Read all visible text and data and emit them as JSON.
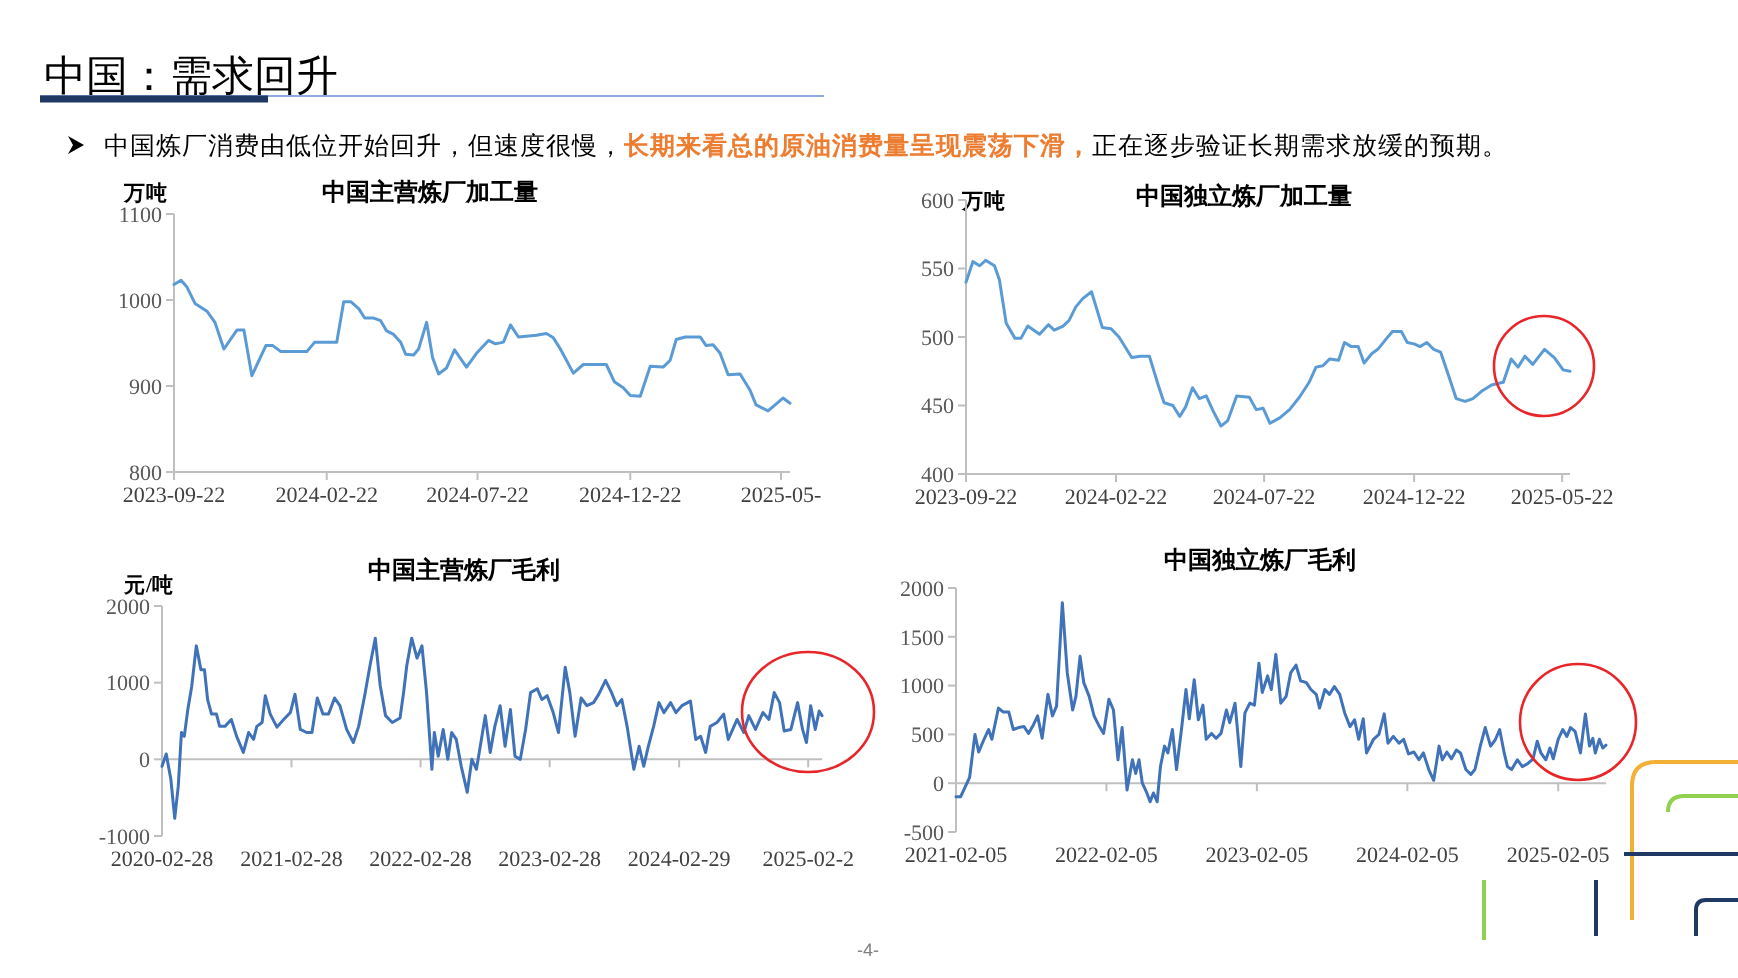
{
  "chart_data": [
    {
      "type": "other",
      "title": "中国：需求回升",
      "annotations": [
        "中国炼厂消费由低位开始回升，但速度很慢，",
        "长期来看总的原油消费量呈现震荡下滑，",
        "正在逐步验证长期需求放缓的预期。",
        "-4-"
      ]
    },
    {
      "type": "line",
      "title": "中国主营炼厂加工量",
      "ylabel": "万吨",
      "xlim": [
        "2023-09-22",
        "2025-05-31"
      ],
      "ylim": [
        800,
        1100
      ],
      "yticks": [
        800,
        900,
        1000,
        1100
      ],
      "xticks": [
        "2023-09-22",
        "2024-02-22",
        "2024-07-22",
        "2024-12-22",
        {
          "value": "2025-05-22",
          "label": "2025-05-"
        }
      ],
      "x": [
        "2023-09-22",
        "2023-09-29",
        "2023-10-05",
        "2023-10-13",
        "2023-10-25",
        "2023-11-02",
        "2023-11-11",
        "2023-11-24",
        "2023-12-01",
        "2023-12-09",
        "2023-12-23",
        "2023-12-30",
        "2024-01-07",
        "2024-02-02",
        "2024-02-10",
        "2024-03-03",
        "2024-03-10",
        "2024-03-17",
        "2024-03-25",
        "2024-03-31",
        "2024-04-09",
        "2024-04-16",
        "2024-04-22",
        "2024-04-29",
        "2024-05-06",
        "2024-05-11",
        "2024-05-19",
        "2024-05-24",
        "2024-06-01",
        "2024-06-07",
        "2024-06-13",
        "2024-06-21",
        "2024-06-29",
        "2024-07-11",
        "2024-07-21",
        "2024-08-02",
        "2024-08-09",
        "2024-08-17",
        "2024-08-24",
        "2024-09-01",
        "2024-09-19",
        "2024-09-29",
        "2024-10-06",
        "2024-10-13",
        "2024-10-26",
        "2024-11-05",
        "2024-11-28",
        "2024-12-06",
        "2024-12-15",
        "2024-12-22",
        "2025-01-01",
        "2025-01-11",
        "2025-01-24",
        "2025-01-31",
        "2025-02-06",
        "2025-02-15",
        "2025-03-02",
        "2025-03-08",
        "2025-03-15",
        "2025-03-22",
        "2025-03-30",
        "2025-04-11",
        "2025-04-21",
        "2025-04-27",
        "2025-05-09",
        "2025-05-14",
        "2025-05-24",
        "2025-05-31"
      ],
      "series": [
        {
          "color": "#5b9bd5",
          "values": [
            1018,
            1023,
            1015,
            996,
            987,
            974,
            943,
            965,
            965,
            912,
            947,
            947,
            940,
            940,
            951,
            951,
            998,
            998,
            990,
            979,
            979,
            976,
            964,
            960,
            951,
            937,
            936,
            943,
            974,
            933,
            914,
            921,
            942,
            922,
            938,
            953,
            949,
            951,
            971,
            957,
            959,
            961,
            956,
            943,
            915,
            925,
            925,
            905,
            898,
            889,
            888,
            923,
            922,
            930,
            954,
            957,
            957,
            947,
            948,
            938,
            913,
            914,
            895,
            878,
            871,
            876,
            886,
            880
          ]
        }
      ]
    },
    {
      "type": "line",
      "title": "中国独立炼厂加工量",
      "ylabel": "万吨",
      "xlim": [
        "2023-09-22",
        "2025-05-30"
      ],
      "ylim": [
        400,
        600
      ],
      "yticks": [
        400,
        450,
        500,
        550,
        600
      ],
      "xticks": [
        "2023-09-22",
        "2024-02-22",
        "2024-07-22",
        "2024-12-22",
        "2025-05-22"
      ],
      "x": [
        "2023-09-22",
        "2023-09-29",
        "2023-10-06",
        "2023-10-12",
        "2023-10-21",
        "2023-10-26",
        "2023-11-02",
        "2023-11-11",
        "2023-11-17",
        "2023-11-24",
        "2023-12-06",
        "2023-12-15",
        "2023-12-21",
        "2023-12-30",
        "2024-01-05",
        "2024-01-12",
        "2024-01-19",
        "2024-01-28",
        "2024-02-08",
        "2024-02-17",
        "2024-02-25",
        "2024-03-09",
        "2024-03-18",
        "2024-03-27",
        "2024-04-05",
        "2024-04-11",
        "2024-04-20",
        "2024-04-27",
        "2024-05-03",
        "2024-05-10",
        "2024-05-17",
        "2024-05-24",
        "2024-05-31",
        "2024-06-08",
        "2024-06-15",
        "2024-06-24",
        "2024-07-07",
        "2024-07-14",
        "2024-07-21",
        "2024-07-28",
        "2024-08-07",
        "2024-08-17",
        "2024-08-27",
        "2024-09-06",
        "2024-09-13",
        "2024-09-20",
        "2024-09-27",
        "2024-10-06",
        "2024-10-12",
        "2024-10-19",
        "2024-10-26",
        "2024-11-01",
        "2024-11-09",
        "2024-11-15",
        "2024-11-24",
        "2024-11-30",
        "2024-12-09",
        "2024-12-15",
        "2024-12-22",
        "2024-12-28",
        "2025-01-04",
        "2025-01-11",
        "2025-01-18",
        "2025-01-27",
        "2025-02-03",
        "2025-02-12",
        "2025-02-20",
        "2025-03-02",
        "2025-03-11",
        "2025-03-23",
        "2025-03-31",
        "2025-04-07",
        "2025-04-14",
        "2025-04-22",
        "2025-05-04",
        "2025-05-14",
        "2025-05-23",
        "2025-05-30"
      ],
      "series": [
        {
          "color": "#5b9bd5",
          "values": [
            540,
            555,
            552,
            556,
            552,
            542,
            510,
            499,
            499,
            508,
            502,
            509,
            505,
            508,
            512,
            522,
            528,
            533,
            507,
            506,
            500,
            485,
            486,
            486,
            465,
            452,
            450,
            442,
            449,
            463,
            455,
            457,
            446,
            435,
            439,
            457,
            456,
            447,
            448,
            437,
            441,
            447,
            456,
            467,
            478,
            479,
            484,
            483,
            496,
            493,
            493,
            481,
            488,
            491,
            499,
            504,
            504,
            496,
            495,
            493,
            496,
            491,
            489,
            470,
            455,
            453,
            455,
            461,
            465,
            467,
            484,
            478,
            486,
            480,
            491,
            485,
            476,
            475
          ]
        }
      ]
    },
    {
      "type": "line",
      "title": "中国主营炼厂毛利",
      "ylabel": "元/吨",
      "xlim": [
        "2020-02-28",
        "2025-04-08"
      ],
      "ylim": [
        -1000,
        2000
      ],
      "yticks": [
        -1000,
        0,
        1000,
        2000
      ],
      "xticks": [
        "2020-02-28",
        "2021-02-28",
        "2022-02-28",
        "2023-02-28",
        "2024-02-29",
        {
          "value": "2025-02-28",
          "label": "2025-02-2"
        }
      ],
      "x": [
        "2020-02-28",
        "2020-03-11",
        "2020-03-24",
        "2020-04-04",
        "2020-04-14",
        "2020-04-23",
        "2020-05-01",
        "2020-05-11",
        "2020-05-22",
        "2020-06-04",
        "2020-06-17",
        "2020-06-27",
        "2020-07-06",
        "2020-07-17",
        "2020-07-31",
        "2020-08-09",
        "2020-08-24",
        "2020-09-11",
        "2020-09-26",
        "2020-10-15",
        "2020-10-30",
        "2020-11-13",
        "2020-11-22",
        "2020-12-07",
        "2020-12-16",
        "2020-12-30",
        "2021-01-18",
        "2021-02-06",
        "2021-02-25",
        "2021-03-10",
        "2021-03-25",
        "2021-04-12",
        "2021-04-27",
        "2021-05-12",
        "2021-05-28",
        "2021-06-13",
        "2021-06-30",
        "2021-07-15",
        "2021-08-03",
        "2021-08-22",
        "2021-09-06",
        "2021-09-23",
        "2021-10-08",
        "2021-10-23",
        "2021-11-06",
        "2021-11-21",
        "2021-12-10",
        "2022-01-01",
        "2022-01-11",
        "2022-01-20",
        "2022-02-03",
        "2022-02-18",
        "2022-03-04",
        "2022-03-17",
        "2022-04-01",
        "2022-04-08",
        "2022-04-19",
        "2022-05-03",
        "2022-05-16",
        "2022-05-27",
        "2022-06-09",
        "2022-06-23",
        "2022-07-10",
        "2022-07-23",
        "2022-08-05",
        "2022-08-19",
        "2022-08-30",
        "2022-09-13",
        "2022-09-26",
        "2022-10-11",
        "2022-10-25",
        "2022-11-09",
        "2022-11-22",
        "2022-12-07",
        "2022-12-22",
        "2023-01-05",
        "2023-01-24",
        "2023-02-06",
        "2023-02-21",
        "2023-03-10",
        "2023-03-25",
        "2023-04-13",
        "2023-04-26",
        "2023-05-11",
        "2023-05-28",
        "2023-06-13",
        "2023-07-02",
        "2023-07-17",
        "2023-08-05",
        "2023-08-22",
        "2023-09-06",
        "2023-09-20",
        "2023-10-05",
        "2023-10-24",
        "2023-11-08",
        "2023-11-21",
        "2023-12-04",
        "2023-12-19",
        "2024-01-03",
        "2024-01-17",
        "2024-02-05",
        "2024-02-20",
        "2024-03-08",
        "2024-04-01",
        "2024-04-16",
        "2024-04-30",
        "2024-05-14",
        "2024-05-27",
        "2024-06-15",
        "2024-07-04",
        "2024-07-17",
        "2024-08-11",
        "2024-08-30",
        "2024-09-13",
        "2024-10-02",
        "2024-10-23",
        "2024-11-09",
        "2024-11-24",
        "2024-12-09",
        "2024-12-22",
        "2025-01-10",
        "2025-01-29",
        "2025-02-12",
        "2025-02-23",
        "2025-03-07",
        "2025-03-20",
        "2025-03-31",
        "2025-04-08"
      ],
      "series": [
        {
          "color": "#3f72b8",
          "values": [
            -90,
            70,
            -260,
            -770,
            -350,
            350,
            300,
            650,
            950,
            1480,
            1170,
            1170,
            780,
            590,
            590,
            430,
            430,
            520,
            300,
            90,
            350,
            260,
            430,
            480,
            830,
            590,
            420,
            520,
            610,
            850,
            390,
            350,
            350,
            800,
            590,
            590,
            800,
            700,
            390,
            220,
            430,
            830,
            1220,
            1580,
            960,
            570,
            480,
            540,
            870,
            1220,
            1580,
            1320,
            1480,
            870,
            -130,
            350,
            40,
            390,
            0,
            350,
            260,
            -90,
            -430,
            0,
            -130,
            260,
            570,
            90,
            430,
            700,
            170,
            650,
            40,
            0,
            390,
            870,
            920,
            780,
            830,
            610,
            350,
            1200,
            870,
            300,
            800,
            700,
            740,
            850,
            1030,
            870,
            700,
            780,
            430,
            -130,
            170,
            -90,
            170,
            430,
            740,
            610,
            740,
            610,
            700,
            760,
            260,
            300,
            90,
            430,
            480,
            590,
            260,
            520,
            350,
            570,
            390,
            610,
            520,
            870,
            740,
            370,
            390,
            740,
            390,
            220,
            700,
            390,
            630,
            570
          ]
        }
      ]
    },
    {
      "type": "line",
      "title": "中国独立炼厂毛利",
      "xlim": [
        "2021-02-05",
        "2025-06-01"
      ],
      "ylim": [
        -500,
        2000
      ],
      "yticks": [
        -500,
        0,
        500,
        1000,
        1500,
        2000
      ],
      "xticks": [
        "2021-02-05",
        "2022-02-05",
        "2023-02-05",
        "2024-02-05",
        "2025-02-05"
      ],
      "x": [
        "2021-02-05",
        "2021-02-16",
        "2021-02-26",
        "2021-03-10",
        "2021-03-23",
        "2021-04-01",
        "2021-04-14",
        "2021-04-25",
        "2021-05-03",
        "2021-05-19",
        "2021-05-30",
        "2021-06-13",
        "2021-06-24",
        "2021-07-07",
        "2021-07-20",
        "2021-07-31",
        "2021-08-12",
        "2021-08-22",
        "2021-09-02",
        "2021-09-16",
        "2021-09-27",
        "2021-10-07",
        "2021-10-21",
        "2021-11-02",
        "2021-11-15",
        "2021-11-23",
        "2021-12-03",
        "2021-12-12",
        "2021-12-25",
        "2022-01-06",
        "2022-01-19",
        "2022-01-29",
        "2022-02-11",
        "2022-02-22",
        "2022-03-05",
        "2022-03-15",
        "2022-03-27",
        "2022-04-09",
        "2022-04-17",
        "2022-04-25",
        "2022-05-03",
        "2022-05-14",
        "2022-05-22",
        "2022-05-30",
        "2022-06-08",
        "2022-06-16",
        "2022-06-26",
        "2022-07-04",
        "2022-07-15",
        "2022-07-25",
        "2022-08-06",
        "2022-08-17",
        "2022-08-25",
        "2022-09-06",
        "2022-09-16",
        "2022-09-27",
        "2022-10-05",
        "2022-10-18",
        "2022-10-29",
        "2022-11-10",
        "2022-11-23",
        "2022-12-01",
        "2022-12-14",
        "2022-12-28",
        "2023-01-07",
        "2023-01-19",
        "2023-01-30",
        "2023-02-10",
        "2023-02-18",
        "2023-03-03",
        "2023-03-12",
        "2023-03-23",
        "2023-04-04",
        "2023-04-17",
        "2023-04-28",
        "2023-05-11",
        "2023-05-22",
        "2023-06-05",
        "2023-06-16",
        "2023-06-29",
        "2023-07-07",
        "2023-07-20",
        "2023-07-31",
        "2023-08-12",
        "2023-08-25",
        "2023-09-06",
        "2023-09-19",
        "2023-09-30",
        "2023-10-10",
        "2023-10-21",
        "2023-10-29",
        "2023-11-15",
        "2023-11-28",
        "2023-12-11",
        "2023-12-20",
        "2024-01-02",
        "2024-01-16",
        "2024-01-27",
        "2024-02-08",
        "2024-02-21",
        "2024-03-04",
        "2024-03-15",
        "2024-03-28",
        "2024-04-09",
        "2024-04-22",
        "2024-04-30",
        "2024-05-11",
        "2024-05-22",
        "2024-06-03",
        "2024-06-13",
        "2024-06-26",
        "2024-07-08",
        "2024-07-18",
        "2024-07-31",
        "2024-08-12",
        "2024-08-25",
        "2024-09-06",
        "2024-09-16",
        "2024-09-27",
        "2024-10-05",
        "2024-10-15",
        "2024-10-29",
        "2024-11-10",
        "2024-11-23",
        "2024-12-06",
        "2024-12-16",
        "2024-12-25",
        "2025-01-06",
        "2025-01-16",
        "2025-01-24",
        "2025-02-05",
        "2025-02-16",
        "2025-02-26",
        "2025-03-07",
        "2025-03-18",
        "2025-03-31",
        "2025-04-12",
        "2025-04-22",
        "2025-04-30",
        "2025-05-06",
        "2025-05-16",
        "2025-05-24",
        "2025-06-01"
      ],
      "series": [
        {
          "color": "#3f72b8",
          "values": [
            -140,
            -140,
            -50,
            60,
            500,
            320,
            450,
            550,
            450,
            770,
            730,
            730,
            550,
            570,
            580,
            510,
            600,
            690,
            460,
            910,
            690,
            790,
            1850,
            1130,
            750,
            890,
            1300,
            1030,
            890,
            690,
            580,
            510,
            860,
            750,
            240,
            570,
            -70,
            240,
            100,
            240,
            0,
            -100,
            -190,
            -100,
            -190,
            170,
            380,
            310,
            550,
            140,
            550,
            960,
            660,
            1060,
            650,
            800,
            450,
            510,
            460,
            510,
            750,
            620,
            820,
            170,
            720,
            820,
            800,
            1230,
            930,
            1100,
            960,
            1320,
            820,
            890,
            1130,
            1210,
            1050,
            1030,
            960,
            910,
            770,
            960,
            910,
            990,
            910,
            720,
            580,
            650,
            450,
            660,
            310,
            450,
            500,
            710,
            410,
            480,
            410,
            450,
            300,
            320,
            240,
            310,
            140,
            30,
            380,
            240,
            320,
            250,
            340,
            310,
            140,
            90,
            140,
            380,
            570,
            380,
            450,
            550,
            310,
            170,
            140,
            240,
            170,
            200,
            250,
            430,
            310,
            240,
            360,
            250,
            450,
            550,
            480,
            570,
            530,
            310,
            710,
            380,
            460,
            310,
            450,
            360,
            390
          ]
        }
      ]
    }
  ]
}
